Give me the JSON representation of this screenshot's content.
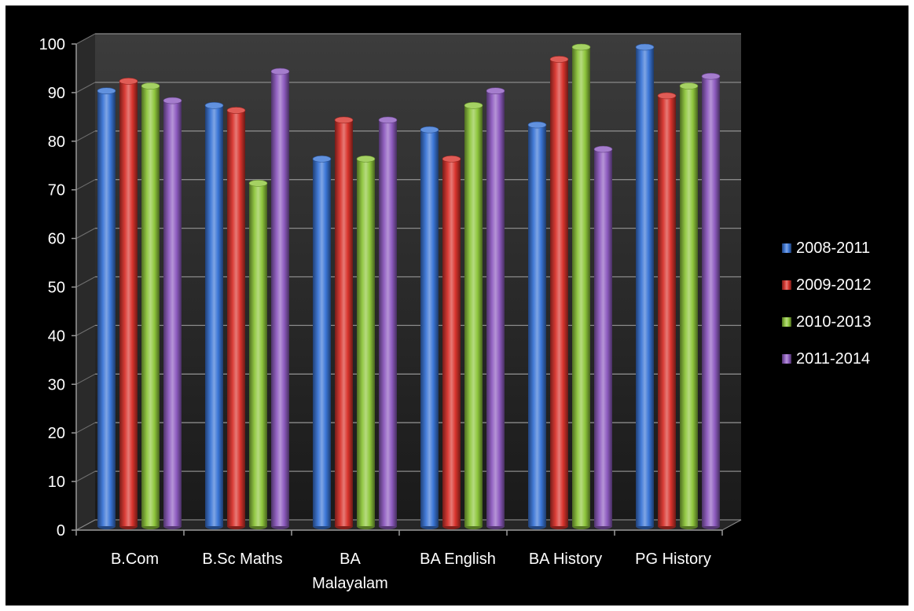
{
  "chart_data": {
    "type": "bar",
    "categories": [
      "B.Com",
      "B.Sc Maths",
      "BA Malayalam",
      "BA English",
      "BA History",
      "PG History"
    ],
    "category_label_lines": [
      [
        "B.Com"
      ],
      [
        "B.Sc Maths"
      ],
      [
        "BA",
        "Malayalam"
      ],
      [
        "BA English"
      ],
      [
        "BA History"
      ],
      [
        "PG History"
      ]
    ],
    "series": [
      {
        "name": "2008-2011",
        "values": [
          91,
          88,
          77,
          83,
          84,
          100
        ]
      },
      {
        "name": "2009-2012",
        "values": [
          93,
          87,
          85,
          77,
          97.5,
          90
        ]
      },
      {
        "name": "2010-2013",
        "values": [
          92,
          72,
          77,
          88,
          100,
          92
        ]
      },
      {
        "name": "2011-2014",
        "values": [
          89,
          95,
          85,
          91,
          79,
          94
        ]
      }
    ],
    "title": "",
    "xlabel": "",
    "ylabel": "",
    "ylim": [
      0,
      100
    ],
    "yticks": [
      0,
      10,
      20,
      30,
      40,
      50,
      60,
      70,
      80,
      90,
      100
    ],
    "grid": true,
    "legend_position": "right",
    "colors": [
      "#3a75d6",
      "#d8332c",
      "#8ec63c",
      "#8e5cc0"
    ],
    "background": "#000000"
  }
}
